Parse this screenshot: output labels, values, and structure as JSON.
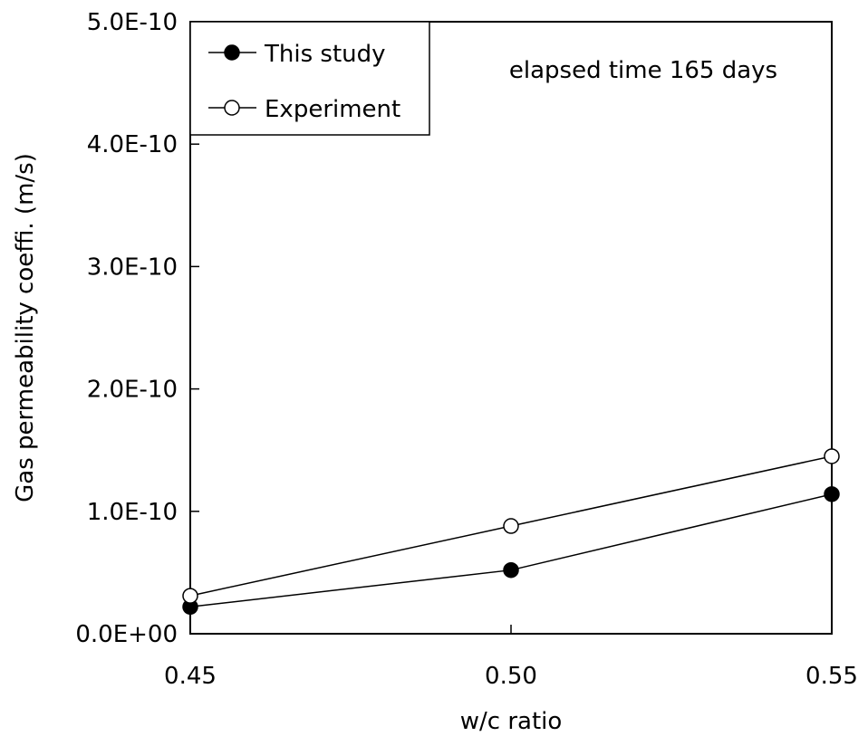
{
  "chart_data": {
    "type": "line",
    "xlabel": "w/c ratio",
    "ylabel": "Gas permeability coeffi. (m/s)",
    "annotation": "elapsed time 165 days",
    "x": [
      0.45,
      0.5,
      0.55
    ],
    "x_tick_labels": [
      "0.45",
      "0.50",
      "0.55"
    ],
    "xlim": [
      0.45,
      0.55
    ],
    "ylim": [
      0,
      5e-10
    ],
    "y_ticks": [
      0,
      1e-10,
      2e-10,
      3e-10,
      4e-10,
      5e-10
    ],
    "y_tick_labels": [
      "0.0E+00",
      "1.0E-10",
      "2.0E-10",
      "3.0E-10",
      "4.0E-10",
      "5.0E-10"
    ],
    "grid": false,
    "legend_position": "top-left",
    "series": [
      {
        "name": "This study",
        "marker": "filled-circle",
        "values": [
          2.2e-11,
          5.2e-11,
          1.14e-10
        ]
      },
      {
        "name": "Experiment",
        "marker": "open-circle",
        "values": [
          3.1e-11,
          8.8e-11,
          1.45e-10
        ]
      }
    ]
  },
  "colors": {
    "line": "#000000",
    "marker_fill": "#000000",
    "open_fill": "#ffffff",
    "background": "#ffffff"
  }
}
